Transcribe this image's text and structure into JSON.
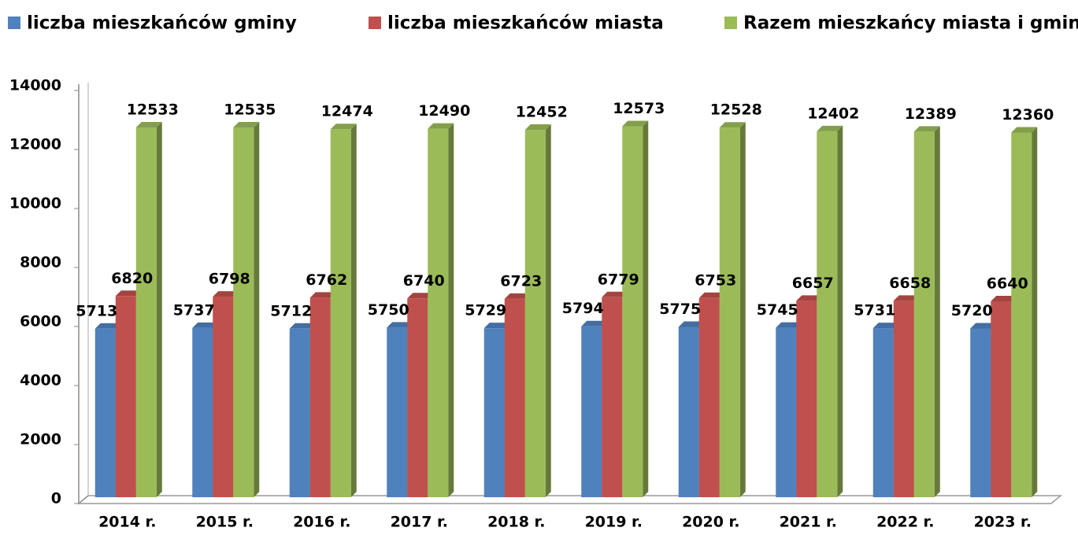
{
  "chart_data": {
    "type": "bar3d",
    "categories": [
      "2014 r.",
      "2015 r.",
      "2016 r.",
      "2017 r.",
      "2018 r.",
      "2019 r.",
      "2020 r.",
      "2021 r.",
      "2022 r.",
      "2023 r."
    ],
    "series": [
      {
        "name": "liczba mieszkańców gminy",
        "color": "#4f81bd",
        "values": [
          5713,
          5737,
          5712,
          5750,
          5729,
          5794,
          5775,
          5745,
          5731,
          5720
        ]
      },
      {
        "name": "liczba mieszkańców miasta",
        "color": "#c0504d",
        "values": [
          6820,
          6798,
          6762,
          6740,
          6723,
          6779,
          6753,
          6657,
          6658,
          6640
        ]
      },
      {
        "name": "Razem  mieszkańcy miasta i gminy",
        "color": "#9bbb59",
        "values": [
          12533,
          12535,
          12474,
          12490,
          12452,
          12573,
          12528,
          12402,
          12389,
          12360
        ]
      }
    ],
    "ylim": [
      0,
      14000
    ],
    "yticks": [
      0,
      2000,
      4000,
      6000,
      8000,
      10000,
      12000,
      14000
    ],
    "legend": "top",
    "grid": false
  }
}
